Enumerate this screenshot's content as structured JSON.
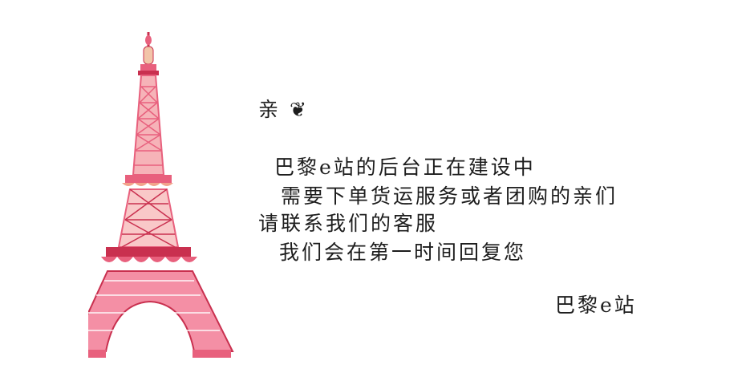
{
  "message": {
    "greeting": "亲 ❦",
    "lines": [
      "巴黎e站的后台正在建设中",
      "需要下单货运服务或者团购的亲们",
      "请联系我们的客服",
      "我们会在第一时间回复您"
    ],
    "signature": "巴黎e站"
  },
  "illustration": {
    "icon": "eiffel-tower-illustration",
    "colors": {
      "primary": "#e8607d",
      "secondary": "#f2a38b",
      "accent": "#c9304f",
      "light": "#fbd6d6"
    }
  }
}
